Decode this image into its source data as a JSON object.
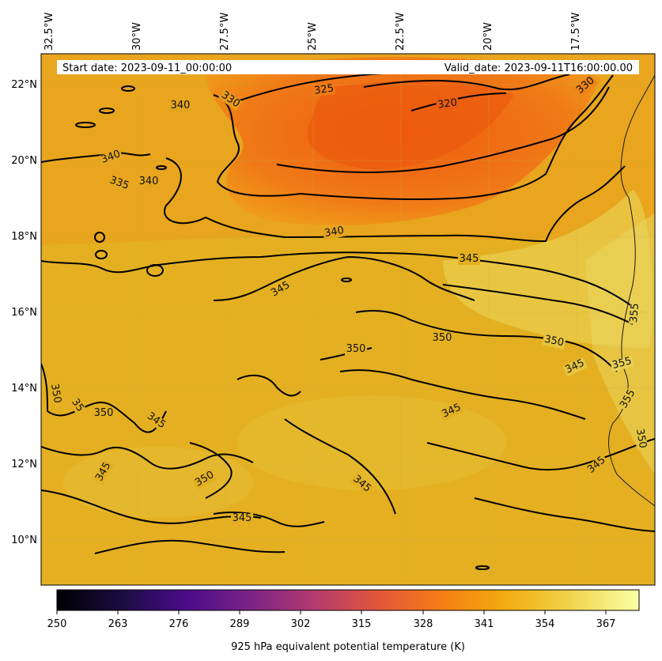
{
  "header": {
    "start_date": "Start date: 2023-09-11_00:00:00",
    "valid_date": "Valid_date: 2023-09-11T16:00:00.00"
  },
  "longitude_labels": [
    "32.5°W",
    "30°W",
    "27.5°W",
    "25°W",
    "22.5°W",
    "20°W",
    "17.5°W"
  ],
  "latitude_labels": [
    "22°N",
    "20°N",
    "18°N",
    "16°N",
    "14°N",
    "12°N",
    "10°N"
  ],
  "contour_labels": [
    {
      "id": "c1",
      "text": "340"
    },
    {
      "id": "c2",
      "text": "330"
    },
    {
      "id": "c3",
      "text": "325"
    },
    {
      "id": "c4",
      "text": "320"
    },
    {
      "id": "c5",
      "text": "330"
    },
    {
      "id": "c6",
      "text": "340"
    },
    {
      "id": "c7",
      "text": "335"
    },
    {
      "id": "c8",
      "text": "340"
    },
    {
      "id": "c9",
      "text": "340"
    },
    {
      "id": "c10",
      "text": "345"
    },
    {
      "id": "c11",
      "text": "345"
    },
    {
      "id": "c12",
      "text": "355"
    },
    {
      "id": "c13",
      "text": "350"
    },
    {
      "id": "c14",
      "text": "350"
    },
    {
      "id": "c15",
      "text": "350"
    },
    {
      "id": "c16",
      "text": "345"
    },
    {
      "id": "c17",
      "text": "355"
    },
    {
      "id": "c18",
      "text": "350"
    },
    {
      "id": "c19",
      "text": "35"
    },
    {
      "id": "c20",
      "text": "350"
    },
    {
      "id": "c21",
      "text": "345"
    },
    {
      "id": "c22",
      "text": "345"
    },
    {
      "id": "c23",
      "text": "355"
    },
    {
      "id": "c24",
      "text": "350"
    },
    {
      "id": "c25",
      "text": "345"
    },
    {
      "id": "c26",
      "text": "350"
    },
    {
      "id": "c27",
      "text": "345"
    },
    {
      "id": "c28",
      "text": "345"
    },
    {
      "id": "c29",
      "text": "345"
    }
  ],
  "colorbar": {
    "ticks": [
      "250",
      "263",
      "276",
      "289",
      "302",
      "315",
      "328",
      "341",
      "354",
      "367"
    ],
    "label": "925 hPa equivalent potential temperature (K)",
    "colors": [
      "#000004",
      "#1b0c41",
      "#4a0c8a",
      "#7a2287",
      "#b23a6f",
      "#e2553c",
      "#f57d15",
      "#f7a80c",
      "#f0d34a",
      "#fcffa4"
    ]
  },
  "map_colors": {
    "dry_core": "#ee6010",
    "background": "#e5b122"
  }
}
